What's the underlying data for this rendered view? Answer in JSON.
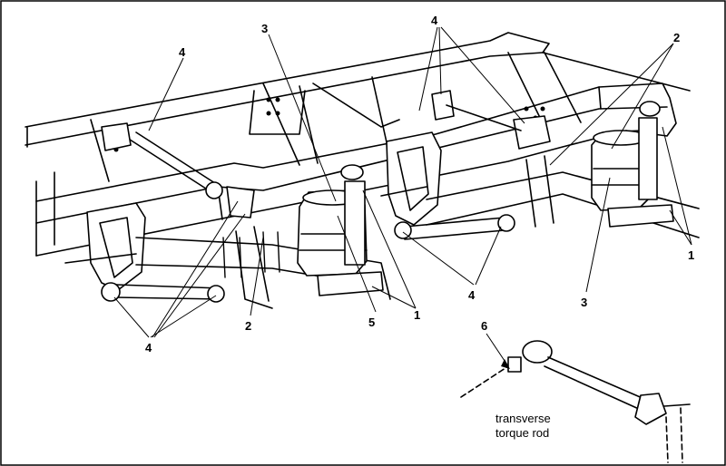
{
  "figure": {
    "callouts": {
      "c1_left": "1",
      "c1_right": "1",
      "c2_top": "2",
      "c2_bottom": "2",
      "c3_top": "3",
      "c3_right": "3",
      "c4_top_left": "4",
      "c4_top_center": "4",
      "c4_center": "4",
      "c4_bottom_left": "4",
      "c5": "5",
      "c6": "6"
    },
    "detail_caption": {
      "line1": "transverse",
      "line2": "torque rod"
    }
  }
}
